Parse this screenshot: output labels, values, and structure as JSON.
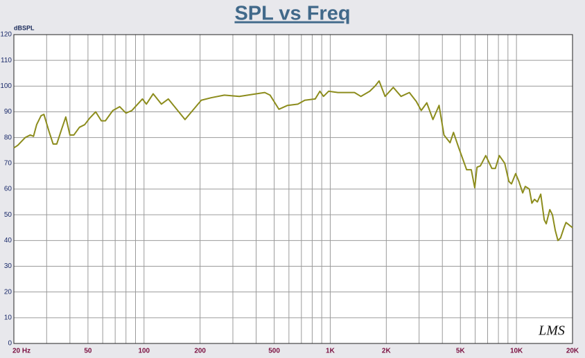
{
  "chart_data": {
    "type": "line",
    "title": "SPL vs Freq",
    "y_label": "dBSPL",
    "logo": "LMS",
    "x_log": true,
    "grid": true,
    "color": "#8c8c1c",
    "xlim": [
      20,
      20000
    ],
    "ylim": [
      0,
      120
    ],
    "yticks": [
      0,
      10,
      20,
      30,
      40,
      50,
      60,
      70,
      80,
      90,
      100,
      110,
      120
    ],
    "xticks": [
      {
        "value": 20,
        "label": "20  Hz"
      },
      50,
      100,
      200,
      500,
      {
        "value": 1000,
        "label": "1K"
      },
      {
        "value": 2000,
        "label": "2K"
      },
      {
        "value": 5000,
        "label": "5K"
      },
      {
        "value": 10000,
        "label": "10K"
      },
      {
        "value": 20000,
        "label": "20K"
      }
    ],
    "x_minor_ticks": [
      30,
      40,
      60,
      70,
      80,
      90,
      300,
      400,
      600,
      700,
      800,
      900,
      3000,
      4000,
      6000,
      7000,
      8000,
      9000
    ],
    "x": [
      20,
      21,
      23,
      24.5,
      25.5,
      26.5,
      28,
      29,
      31,
      32.5,
      34,
      36,
      38,
      40,
      42,
      45,
      48,
      51,
      55,
      59,
      62,
      68,
      74,
      80,
      86,
      98,
      103,
      112,
      124,
      135,
      166,
      203,
      230,
      270,
      325,
      400,
      445,
      475,
      530,
      590,
      670,
      730,
      830,
      880,
      920,
      980,
      1100,
      1350,
      1460,
      1630,
      1740,
      1830,
      1970,
      2180,
      2400,
      2660,
      2900,
      3080,
      3300,
      3560,
      3840,
      4080,
      4400,
      4590,
      4900,
      5400,
      5720,
      5970,
      6140,
      6400,
      6840,
      7380,
      7700,
      8090,
      8650,
      9100,
      9400,
      9900,
      10300,
      10800,
      11150,
      11720,
      12100,
      12500,
      12950,
      13500,
      14100,
      14450,
      15100,
      15600,
      16150,
      16700,
      17250,
      18000,
      18450,
      20000
    ],
    "values": [
      76,
      77,
      80,
      81,
      80.5,
      85,
      88.5,
      89,
      82,
      77.5,
      77.5,
      83,
      88,
      81,
      81,
      84,
      85,
      87.5,
      90,
      86.5,
      86.5,
      90.5,
      92,
      89.5,
      90.5,
      95,
      93,
      97,
      93,
      95,
      87,
      94.5,
      95.5,
      96.5,
      96,
      97,
      97.5,
      96.5,
      91,
      92.5,
      93,
      94.5,
      95,
      98,
      96,
      98,
      97.5,
      97.5,
      96,
      98,
      100,
      102,
      96,
      99.5,
      96,
      97.5,
      94,
      90.5,
      93.5,
      87,
      92.5,
      81,
      78,
      82,
      76,
      67.5,
      67.5,
      60.5,
      68.5,
      69,
      73,
      68,
      68,
      73,
      70,
      63,
      62,
      66,
      63,
      58.5,
      61,
      60,
      54.5,
      56,
      55,
      58,
      48,
      46.5,
      52,
      50,
      44,
      40,
      41,
      45,
      47,
      45
    ]
  }
}
